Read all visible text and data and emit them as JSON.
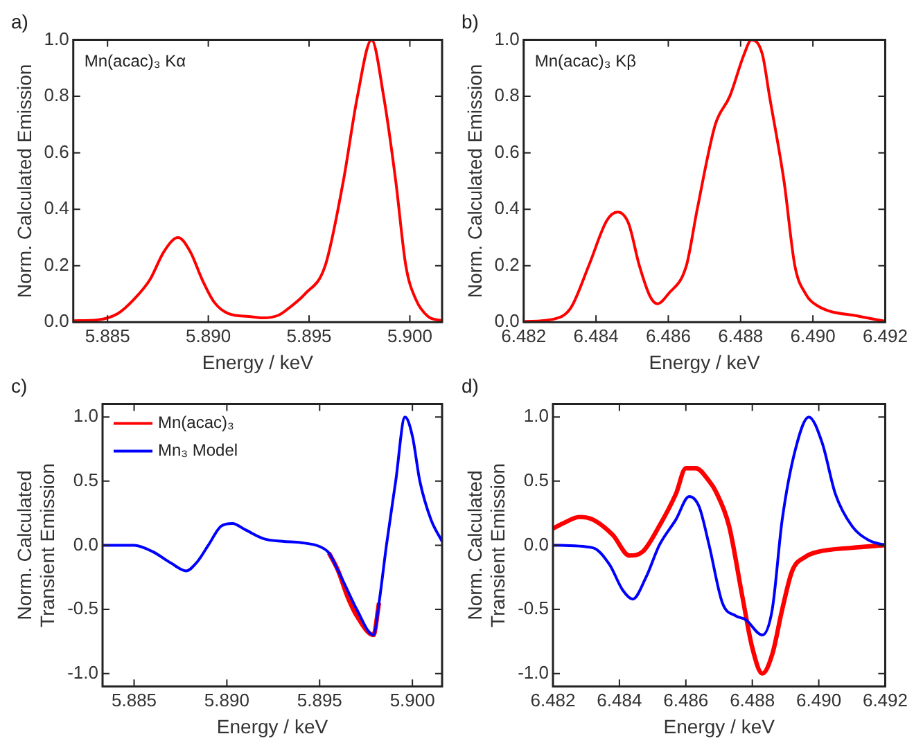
{
  "chart_data": [
    {
      "type": "line",
      "title": "a)",
      "xlabel": "Energy / keV",
      "ylabel": "Norm. Calculated Emission",
      "annotations": [
        "Mn(acac)₃ Kα"
      ],
      "xlim": [
        5.8833,
        5.9016
      ],
      "xticks": [
        5.885,
        {
          "value": 5.89,
          "label": "5.890"
        },
        5.895,
        {
          "value": 5.9,
          "label": "5.900"
        }
      ],
      "ylim": [
        0,
        1
      ],
      "yticks": [
        {
          "value": 0,
          "label": "0.0"
        },
        0.2,
        0.4,
        0.6,
        0.8,
        {
          "value": 1,
          "label": "1.0"
        }
      ],
      "grid": false,
      "legend": false,
      "marker": "none",
      "line_style": "solid",
      "series": [
        {
          "color": "#ff0000",
          "x": [
            5.8833,
            5.8845,
            5.8855,
            5.8863,
            5.8871,
            5.8878,
            5.8885,
            5.8891,
            5.8897,
            5.8903,
            5.891,
            5.892,
            5.8927,
            5.8935,
            5.894,
            5.8948,
            5.8958,
            5.8967,
            5.8974,
            5.8981,
            5.8987,
            5.8993,
            5.8998,
            5.9003,
            5.9009,
            5.9016
          ],
          "values": [
            0.005,
            0.008,
            0.03,
            0.08,
            0.15,
            0.25,
            0.3,
            0.25,
            0.15,
            0.07,
            0.03,
            0.02,
            0.015,
            0.025,
            0.05,
            0.1,
            0.2,
            0.5,
            0.8,
            1.0,
            0.8,
            0.5,
            0.2,
            0.08,
            0.02,
            0.005
          ]
        }
      ]
    },
    {
      "type": "line",
      "title": "b)",
      "xlabel": "Energy / keV",
      "ylabel": "Norm. Calculated Emission",
      "annotations": [
        "Mn(acac)₃ Kβ"
      ],
      "xlim": [
        6.482,
        6.492
      ],
      "xticks": [
        6.482,
        6.484,
        6.486,
        6.488,
        {
          "value": 6.49,
          "label": "6.490"
        },
        6.492
      ],
      "ylim": [
        0,
        1
      ],
      "yticks": [
        {
          "value": 0,
          "label": "0.0"
        },
        0.2,
        0.4,
        0.6,
        0.8,
        {
          "value": 1,
          "label": "1.0"
        }
      ],
      "grid": false,
      "legend": false,
      "marker": "none",
      "line_style": "solid",
      "series": [
        {
          "color": "#ff0000",
          "x": [
            6.482,
            6.4828,
            6.4833,
            6.4838,
            6.4843,
            6.4846,
            6.4849,
            6.4852,
            6.4855,
            6.4857,
            6.486,
            6.4865,
            6.4868,
            6.4873,
            6.4877,
            6.4881,
            6.4883,
            6.4886,
            6.4888,
            6.4892,
            6.4895,
            6.4898,
            6.4901,
            6.4913,
            6.492
          ],
          "values": [
            0.002,
            0.01,
            0.05,
            0.2,
            0.36,
            0.39,
            0.35,
            0.2,
            0.09,
            0.065,
            0.1,
            0.2,
            0.4,
            0.7,
            0.8,
            0.95,
            1.0,
            0.95,
            0.8,
            0.5,
            0.2,
            0.1,
            0.06,
            0.02,
            0.003
          ]
        }
      ]
    },
    {
      "type": "line",
      "title": "c)",
      "xlabel": "Energy / keV",
      "ylabel": "Norm. Calculated Transient Emission",
      "xlim": [
        5.8833,
        5.9016
      ],
      "xticks": [
        5.885,
        {
          "value": 5.89,
          "label": "5.890"
        },
        5.895,
        {
          "value": 5.9,
          "label": "5.900"
        }
      ],
      "ylim": [
        -1.1,
        1.1
      ],
      "yticks": [
        {
          "value": -1,
          "label": "-1.0"
        },
        -0.5,
        {
          "value": 0,
          "label": "0.0"
        },
        0.5,
        {
          "value": 1,
          "label": "1.0"
        }
      ],
      "grid": false,
      "legend": "top left",
      "marker": "none",
      "line_style": "solid",
      "series": [
        {
          "name": "Mn(acac)₃",
          "color": "#ff0000",
          "x": [
            5.8955,
            5.896,
            5.8965,
            5.897,
            5.8979,
            5.8982
          ],
          "values": [
            -0.06,
            -0.2,
            -0.4,
            -0.55,
            -0.7,
            -0.45
          ]
        },
        {
          "name": "Mn₃ Model",
          "color": "#0000ff",
          "x": [
            5.8833,
            5.885,
            5.886,
            5.887,
            5.8878,
            5.8884,
            5.889,
            5.8897,
            5.8903,
            5.891,
            5.892,
            5.893,
            5.894,
            5.895,
            5.8955,
            5.896,
            5.8965,
            5.897,
            5.8979,
            5.8982,
            5.8986,
            5.8991,
            5.8996,
            5.9,
            5.9004,
            5.901,
            5.9016
          ],
          "values": [
            0,
            0,
            -0.05,
            -0.14,
            -0.2,
            -0.13,
            0.0,
            0.15,
            0.17,
            0.12,
            0.05,
            0.03,
            0.02,
            -0.01,
            -0.06,
            -0.2,
            -0.35,
            -0.5,
            -0.7,
            -0.45,
            0.0,
            0.5,
            1.0,
            0.85,
            0.5,
            0.2,
            0.03
          ]
        }
      ]
    },
    {
      "type": "line",
      "title": "d)",
      "xlabel": "Energy / keV",
      "ylabel": "Norm. Calculated Transient Emission",
      "xlim": [
        6.482,
        6.492
      ],
      "xticks": [
        6.482,
        6.484,
        6.486,
        6.488,
        {
          "value": 6.49,
          "label": "6.490"
        },
        6.492
      ],
      "ylim": [
        -1.1,
        1.1
      ],
      "yticks": [
        {
          "value": -1,
          "label": "-1.0"
        },
        -0.5,
        {
          "value": 0,
          "label": "0.0"
        },
        0.5,
        {
          "value": 1,
          "label": "1.0"
        }
      ],
      "grid": false,
      "legend": false,
      "marker": "none",
      "line_style": "solid",
      "series": [
        {
          "color": "#ff0000",
          "x": [
            6.482,
            6.4823,
            6.4828,
            6.4832,
            6.4838,
            6.4843,
            6.4847,
            6.4852,
            6.4857,
            6.486,
            6.4863,
            6.4867,
            6.4869,
            6.4873,
            6.4877,
            6.488,
            6.4883,
            6.4886,
            6.4889,
            6.4892,
            6.4896,
            6.49,
            6.491,
            6.492
          ],
          "values": [
            0.13,
            0.17,
            0.22,
            0.2,
            0.08,
            -0.08,
            -0.05,
            0.15,
            0.4,
            0.6,
            0.6,
            0.5,
            0.42,
            0.15,
            -0.4,
            -0.8,
            -1.0,
            -0.85,
            -0.5,
            -0.2,
            -0.09,
            -0.05,
            -0.02,
            0
          ]
        },
        {
          "color": "#0000ff",
          "x": [
            6.482,
            6.4832,
            6.4837,
            6.4841,
            6.4844,
            6.4848,
            6.4852,
            6.4857,
            6.4861,
            6.4864,
            6.4867,
            6.4871,
            6.4875,
            6.4878,
            6.4883,
            6.4886,
            6.4889,
            6.4893,
            6.4897,
            6.4901,
            6.4905,
            6.491,
            6.4915,
            6.492
          ],
          "values": [
            0,
            -0.02,
            -0.15,
            -0.35,
            -0.42,
            -0.25,
            0.0,
            0.2,
            0.38,
            0.3,
            0.0,
            -0.45,
            -0.55,
            -0.58,
            -0.7,
            -0.5,
            0.2,
            0.75,
            1.0,
            0.8,
            0.4,
            0.15,
            0.04,
            0
          ]
        }
      ]
    }
  ]
}
